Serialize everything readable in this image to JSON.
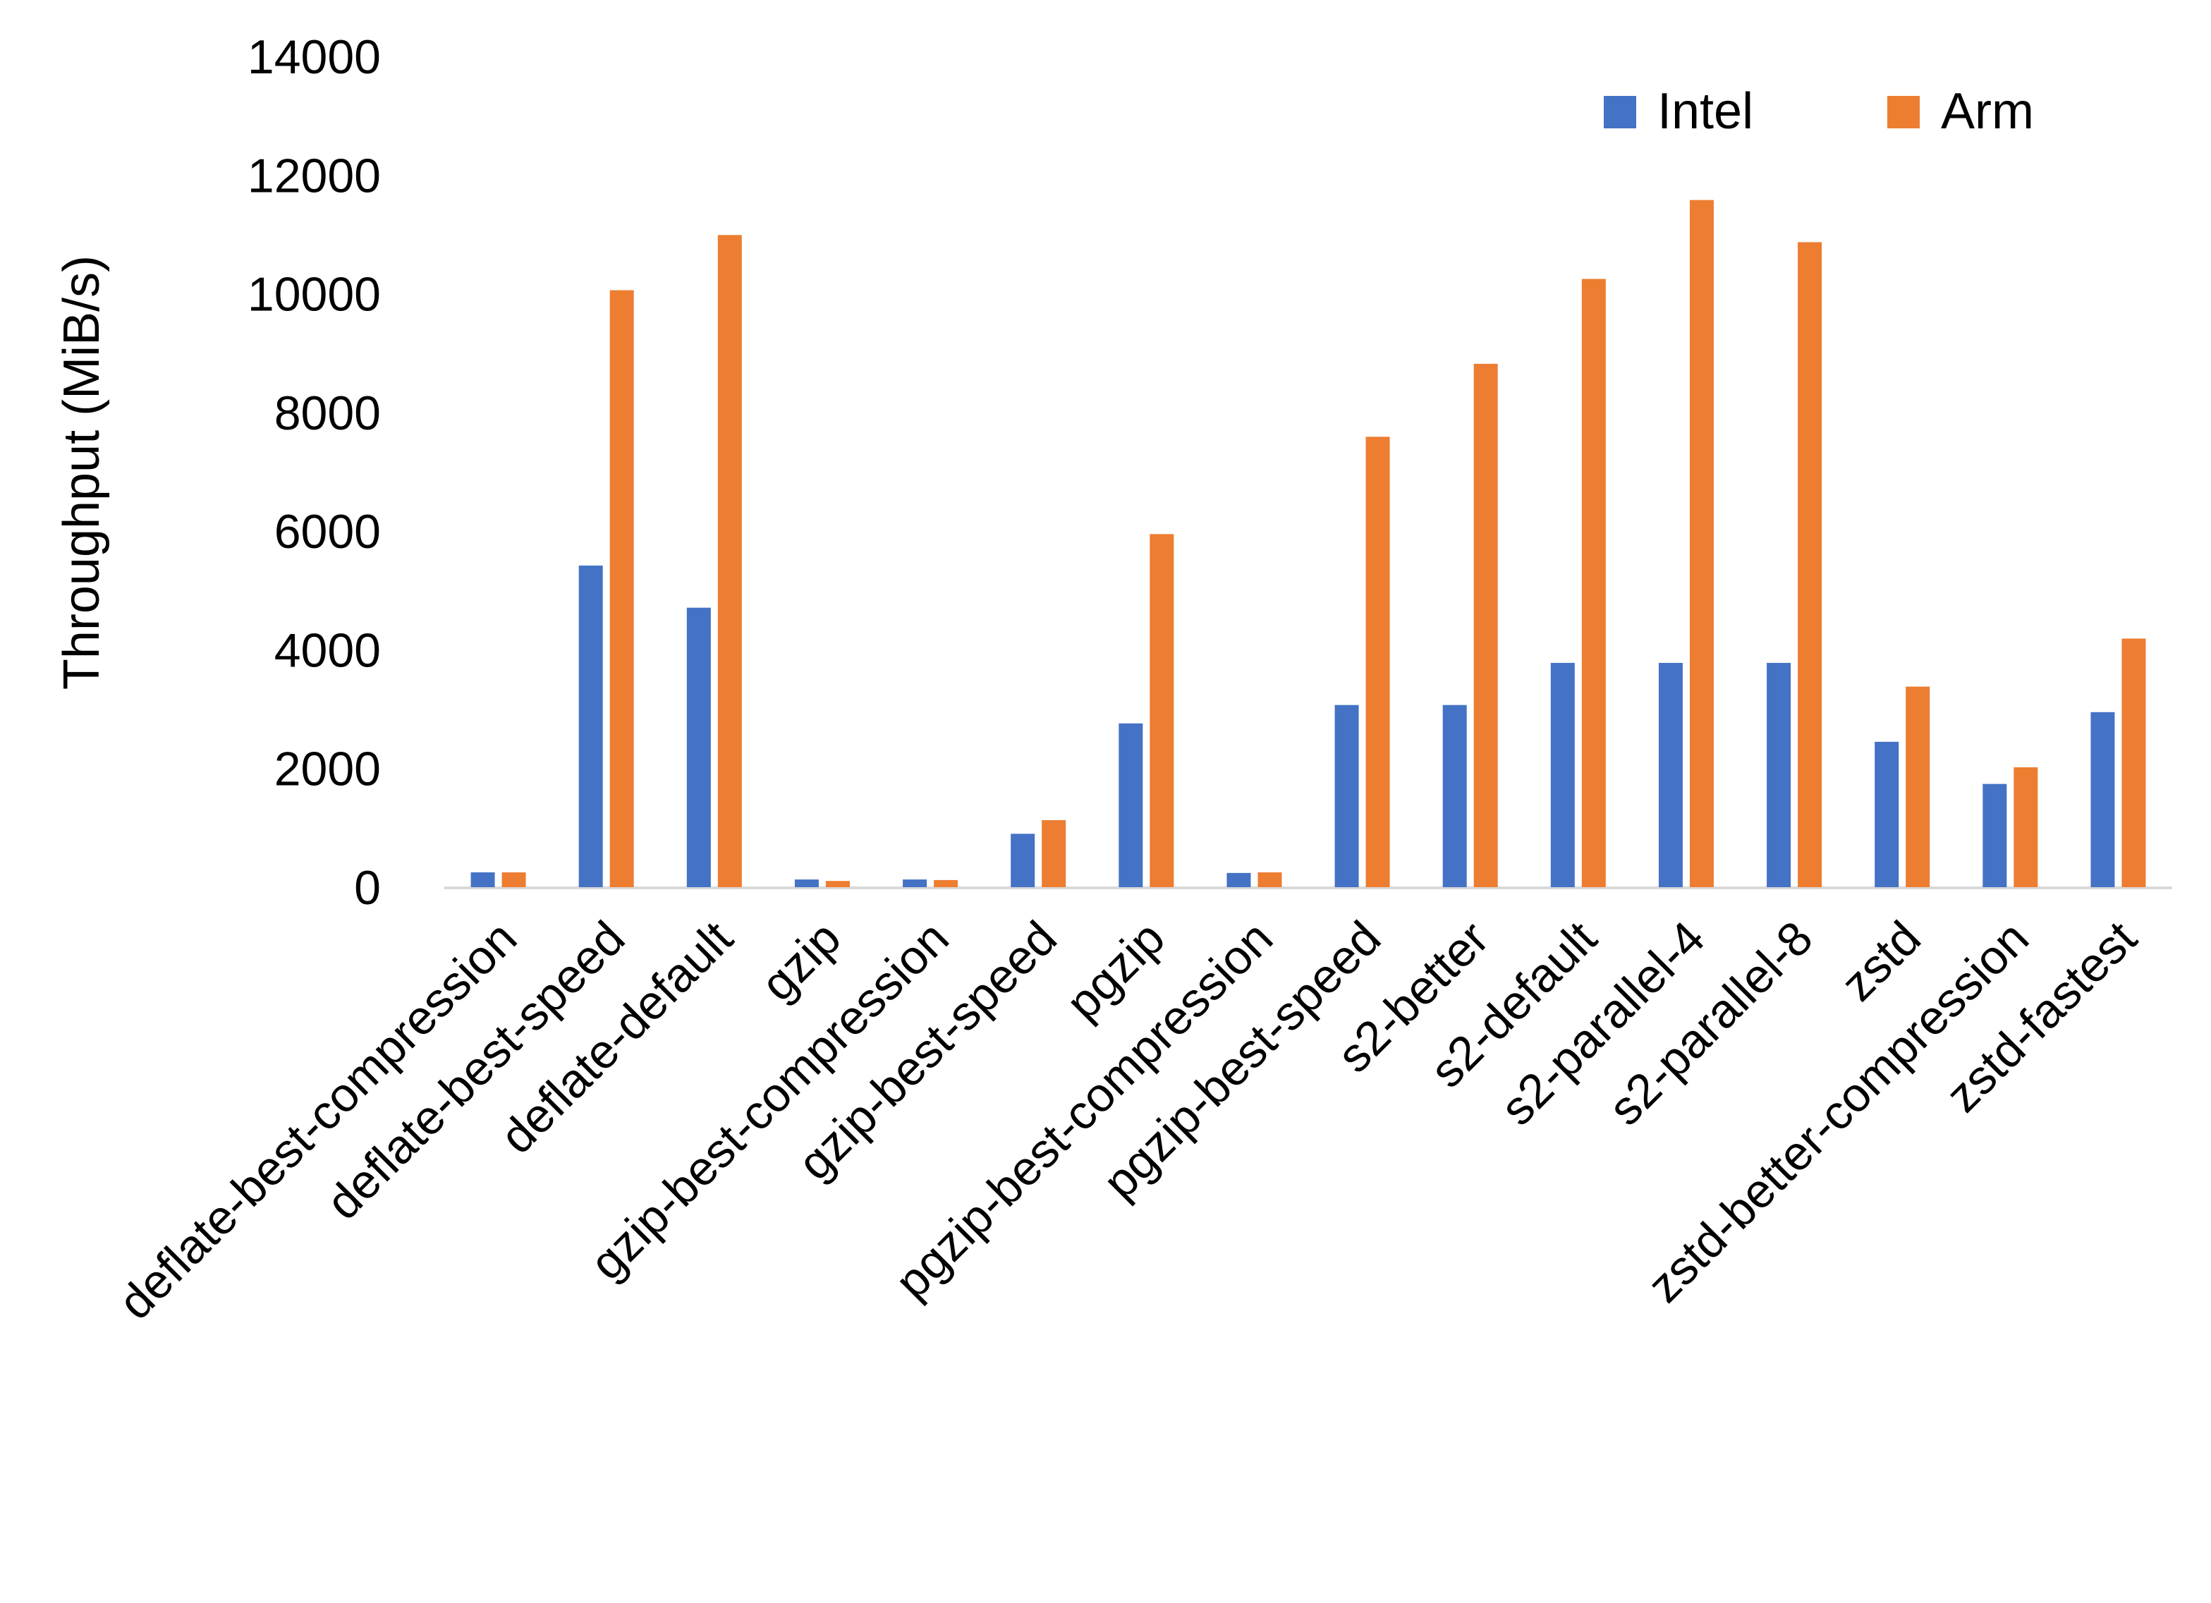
{
  "chart_data": {
    "type": "bar",
    "title": "",
    "xlabel": "",
    "ylabel": "Throughput (MiB/s)",
    "ylim": [
      0,
      14000
    ],
    "yticks": [
      0,
      2000,
      4000,
      6000,
      8000,
      10000,
      12000,
      14000
    ],
    "grid": false,
    "legend_position": "top-right",
    "categories": [
      "deflate-best-compression",
      "deflate-best-speed",
      "deflate-default",
      "gzip",
      "gzip-best-compression",
      "gzip-best-speed",
      "pgzip",
      "pgzip-best-compression",
      "pgzip-best-speed",
      "s2-better",
      "s2-default",
      "s2-parallel-4",
      "s2-parallel-8",
      "zstd",
      "zstd-better-compression",
      "zstd-fastest"
    ],
    "series": [
      {
        "name": "Intel",
        "color": "#4472C4",
        "values": [
          250,
          5420,
          4710,
          130,
          130,
          900,
          2760,
          240,
          3070,
          3070,
          3780,
          3780,
          3780,
          2450,
          1740,
          2950
        ]
      },
      {
        "name": "Arm",
        "color": "#ED7D31",
        "values": [
          250,
          10060,
          10990,
          105,
          120,
          1130,
          5950,
          250,
          7590,
          8820,
          10250,
          11580,
          10870,
          3380,
          2020,
          4190
        ]
      }
    ]
  }
}
